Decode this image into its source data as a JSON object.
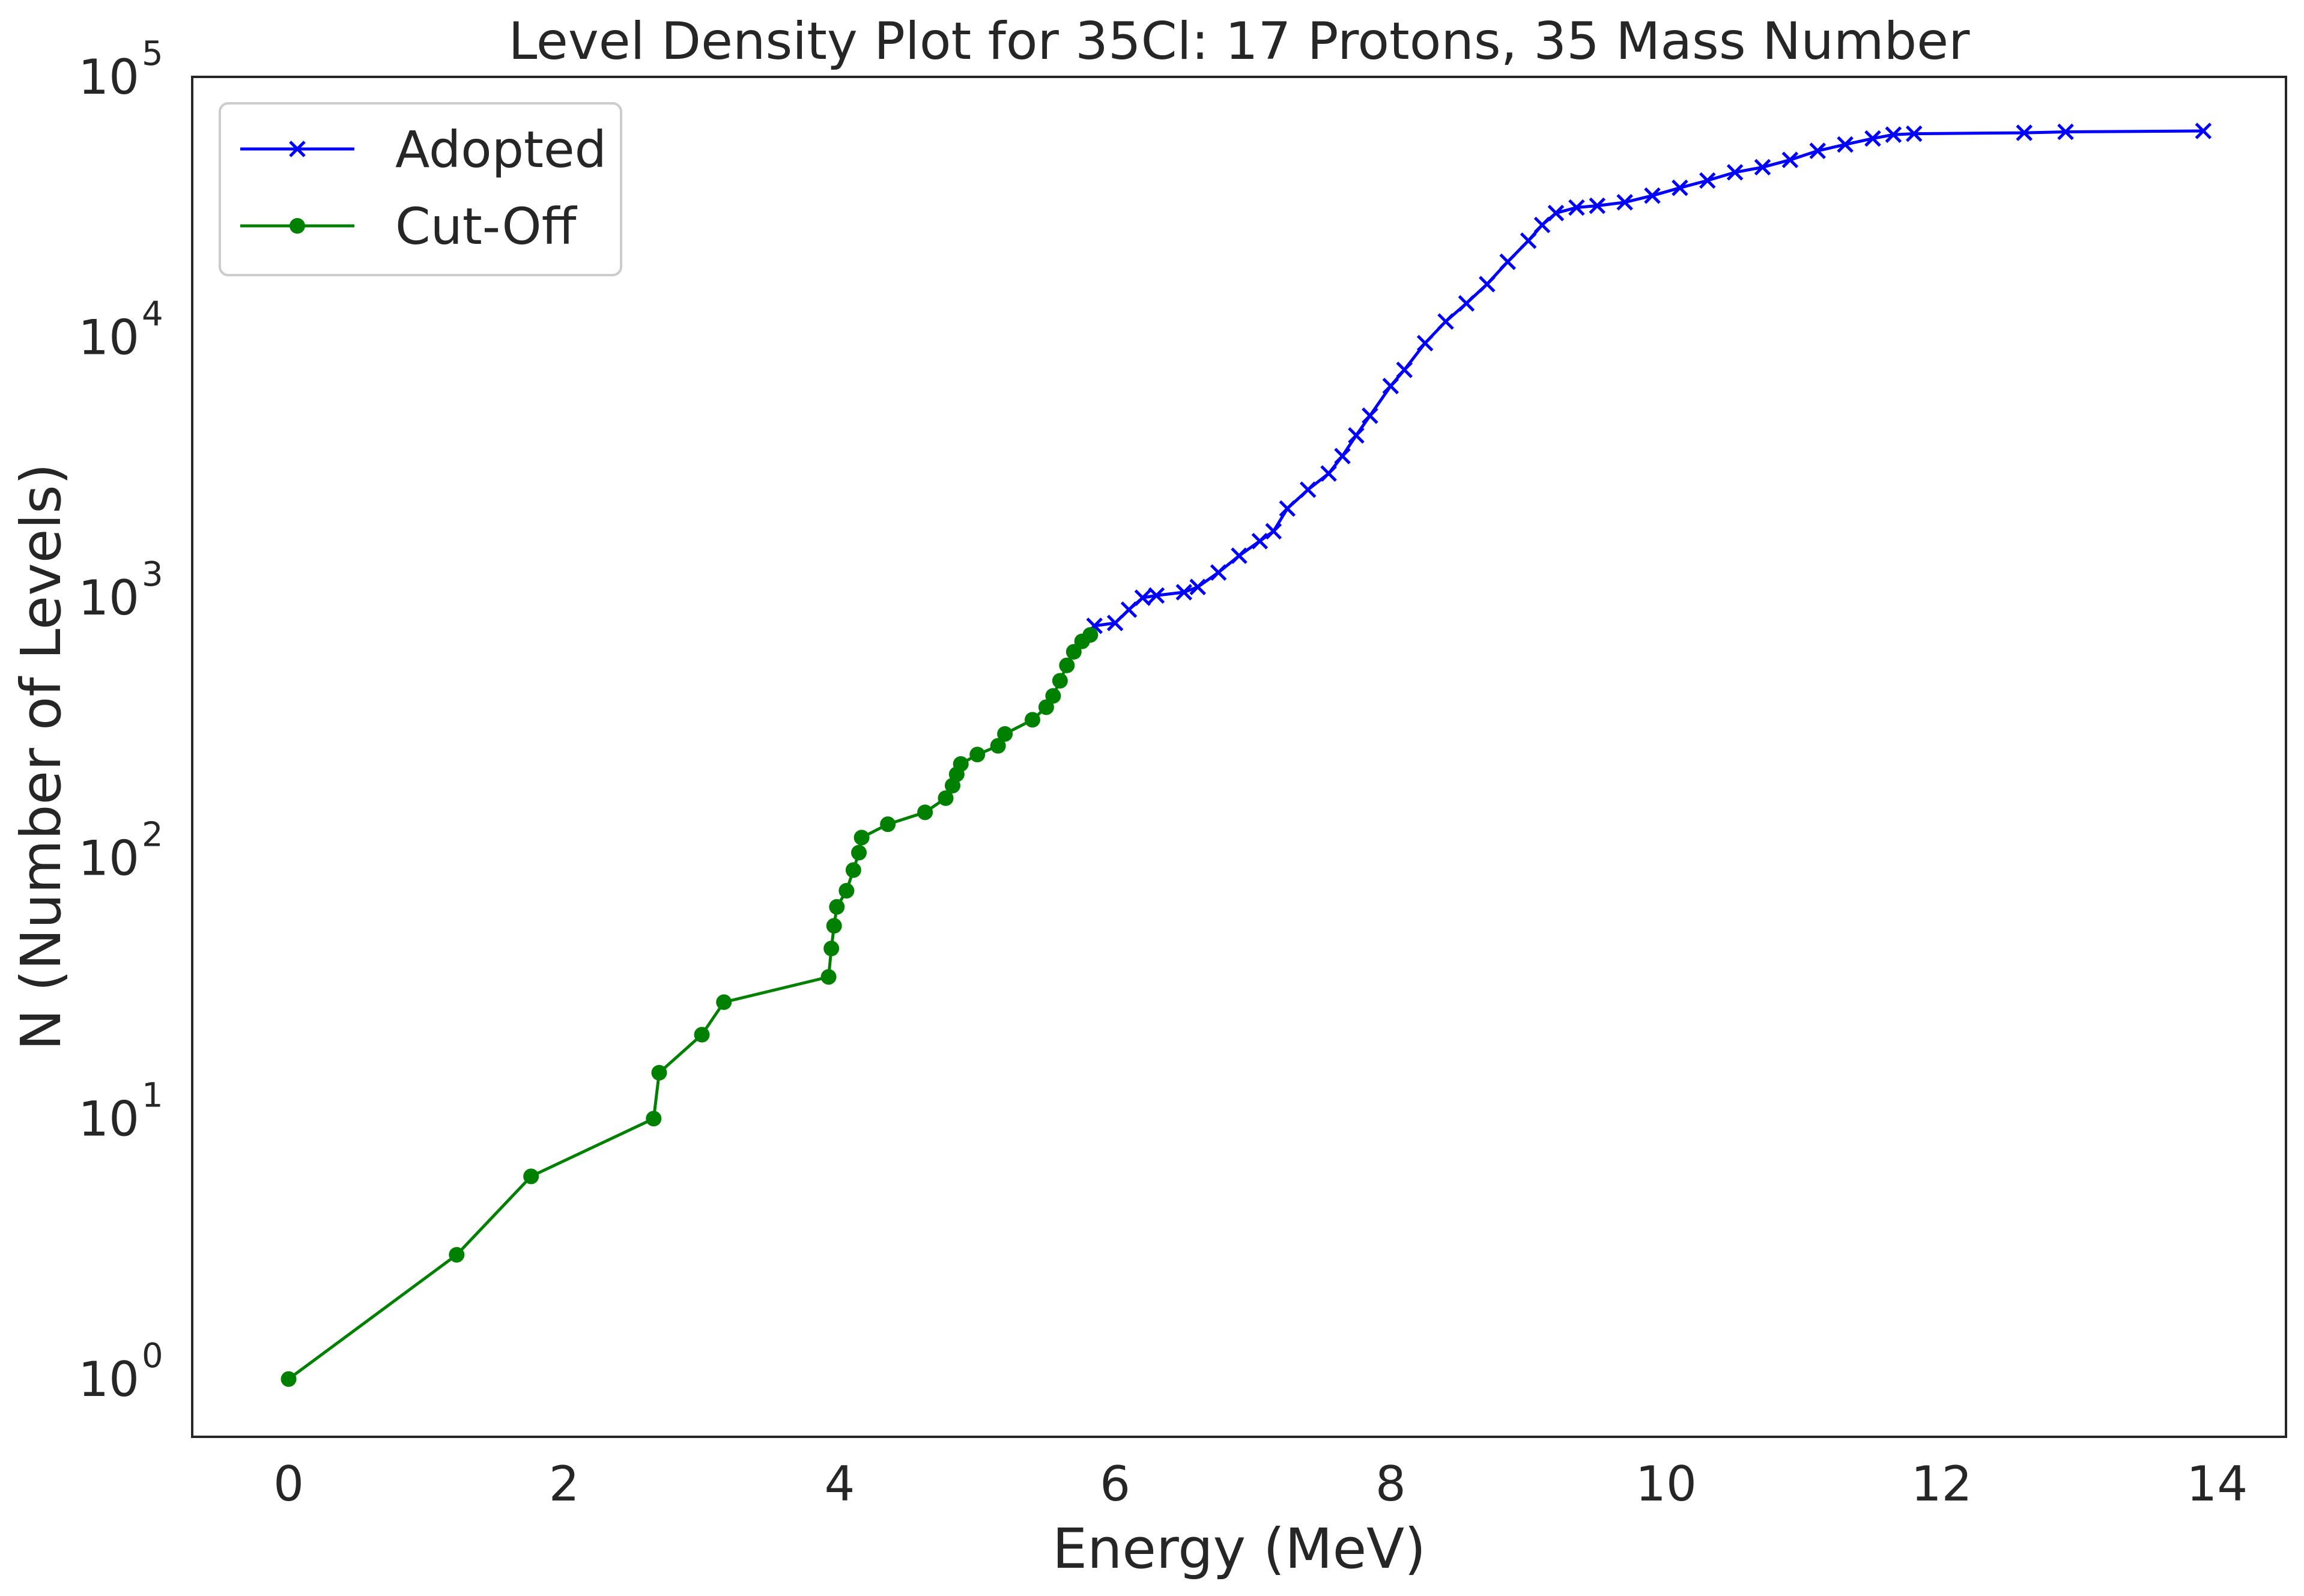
{
  "chart_data": {
    "type": "line",
    "title": "Level Density Plot for 35Cl: 17 Protons, 35 Mass Number",
    "xlabel": "Energy (MeV)",
    "ylabel": "N (Number of Levels)",
    "xlim": [
      -0.7,
      14.5
    ],
    "ylim": [
      0.6,
      100000
    ],
    "yscale": "log",
    "xticks": [
      "0",
      "2",
      "4",
      "6",
      "8",
      "10",
      "12",
      "14"
    ],
    "yticks": [
      {
        "base": "10",
        "exp": "0"
      },
      {
        "base": "10",
        "exp": "1"
      },
      {
        "base": "10",
        "exp": "2"
      },
      {
        "base": "10",
        "exp": "3"
      },
      {
        "base": "10",
        "exp": "4"
      },
      {
        "base": "10",
        "exp": "5"
      }
    ],
    "grid": false,
    "legend_position": "top-left",
    "series": [
      {
        "name": "Adopted",
        "color": "#0000ff",
        "marker": "x",
        "x": [
          5.85,
          6.0,
          6.1,
          6.2,
          6.3,
          6.5,
          6.6,
          6.75,
          6.9,
          7.05,
          7.15,
          7.25,
          7.4,
          7.55,
          7.65,
          7.75,
          7.85,
          8.0,
          8.1,
          8.25,
          8.4,
          8.55,
          8.7,
          8.85,
          9.0,
          9.1,
          9.2,
          9.35,
          9.5,
          9.7,
          9.9,
          10.1,
          10.3,
          10.5,
          10.7,
          10.9,
          11.1,
          11.3,
          11.5,
          11.65,
          11.8,
          12.6,
          12.9,
          13.9
        ],
        "y": [
          780,
          800,
          900,
          1000,
          1020,
          1050,
          1100,
          1250,
          1450,
          1650,
          1800,
          2200,
          2600,
          3000,
          3500,
          4200,
          5000,
          6500,
          7500,
          9500,
          11500,
          13500,
          16000,
          19500,
          23500,
          27000,
          30000,
          31500,
          32000,
          33000,
          35000,
          37500,
          40000,
          43000,
          45000,
          48000,
          52000,
          55000,
          58000,
          60000,
          60500,
          61000,
          61500,
          62000
        ]
      },
      {
        "name": "Cut-Off",
        "color": "#008000",
        "marker": "o",
        "x": [
          0.0,
          1.22,
          1.76,
          2.65,
          2.69,
          3.0,
          3.16,
          3.92,
          3.94,
          3.96,
          3.98,
          4.05,
          4.1,
          4.14,
          4.16,
          4.35,
          4.62,
          4.77,
          4.82,
          4.85,
          4.88,
          5.0,
          5.15,
          5.2,
          5.4,
          5.5,
          5.55,
          5.6,
          5.65,
          5.7,
          5.76,
          5.82
        ],
        "y": [
          1,
          3,
          6,
          10,
          15,
          21,
          28,
          35,
          45,
          55,
          65,
          75,
          90,
          105,
          120,
          135,
          150,
          170,
          190,
          210,
          230,
          250,
          270,
          300,
          340,
          380,
          420,
          480,
          550,
          620,
          680,
          720
        ]
      }
    ]
  }
}
